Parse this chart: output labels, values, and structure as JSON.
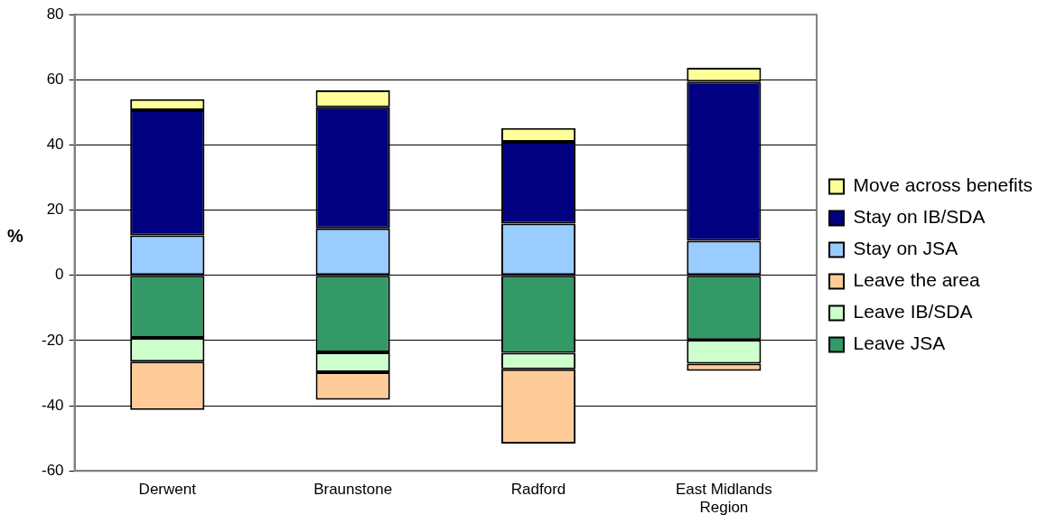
{
  "chart_data": {
    "type": "bar",
    "stacked": true,
    "ylabel": "%",
    "categories": [
      "Derwent",
      "Braunstone",
      "Radford",
      "East Midlands Region"
    ],
    "series": [
      {
        "name": "Leave JSA",
        "color": "#339966",
        "values": [
          -19.2,
          -23.6,
          -23.8,
          -19.8
        ]
      },
      {
        "name": "Leave IB/SDA",
        "color": "#ccffcc",
        "values": [
          -7.3,
          -6.1,
          -5.0,
          -7.3
        ]
      },
      {
        "name": "Leave the area",
        "color": "#ffcc99",
        "values": [
          -14.8,
          -8.5,
          -22.8,
          -2.2
        ]
      },
      {
        "name": "Stay on JSA",
        "color": "#99ccff",
        "values": [
          12.3,
          14.4,
          15.9,
          10.6
        ]
      },
      {
        "name": "Stay on IB/SDA",
        "color": "#000080",
        "values": [
          38.4,
          37.2,
          25.1,
          48.8
        ]
      },
      {
        "name": "Move across benefits",
        "color": "#ffff99",
        "values": [
          3.4,
          5.2,
          4.2,
          4.3
        ]
      }
    ],
    "ylim": [
      -60,
      80
    ],
    "yticks": [
      -60,
      -40,
      -20,
      0,
      20,
      40,
      60,
      80
    ],
    "grid": "y",
    "legend": "right"
  }
}
